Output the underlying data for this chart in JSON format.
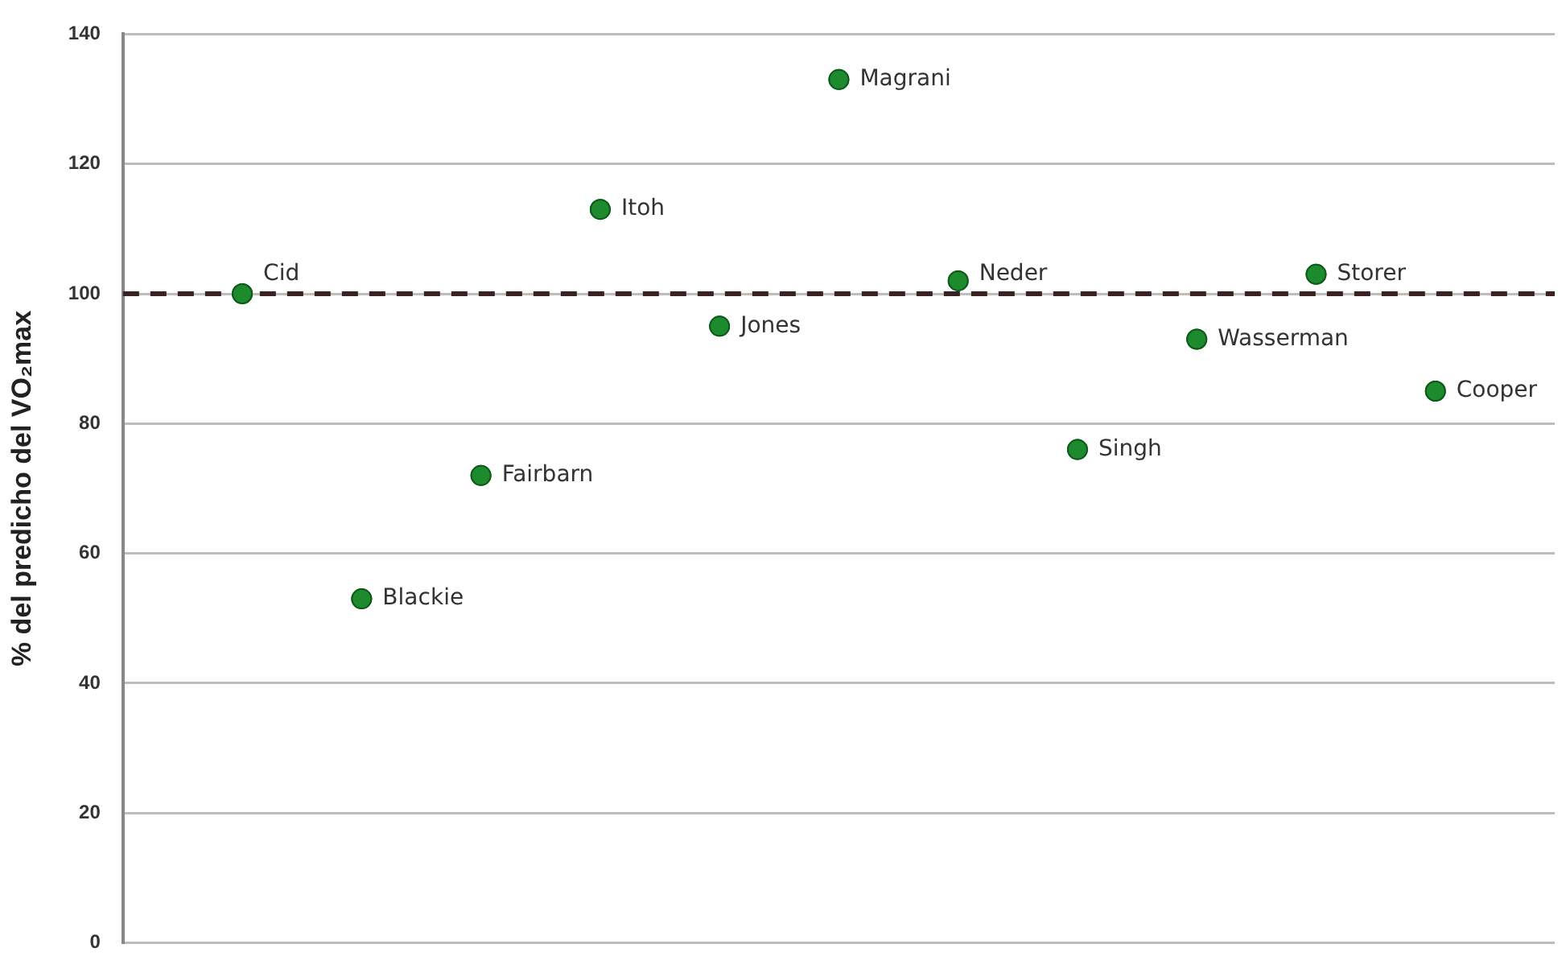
{
  "chart_data": {
    "type": "scatter",
    "ylabel": "% del predicho del VO₂max",
    "categories": [
      null,
      null,
      null,
      null,
      null,
      null,
      null,
      null,
      null,
      null,
      null
    ],
    "values": [
      100,
      53,
      72,
      113,
      95,
      133,
      102,
      76,
      93,
      103,
      85
    ],
    "value_labels": [
      "Cid",
      "Blackie",
      "Fairbarn",
      "Itoh",
      "Jones",
      "Magrani",
      "Neder",
      "Singh",
      "Wasserman",
      "Storer",
      "Cooper"
    ],
    "color": "#1e8a2e",
    "ylim": [
      0,
      140
    ],
    "yticks": [
      0,
      20,
      40,
      60,
      80,
      100,
      120,
      140
    ],
    "grid": "y",
    "marker": "circle",
    "legend": false,
    "ref_lines": [
      {
        "axis": "y",
        "value": 100,
        "label": null,
        "color": "#3a2222",
        "line_style": "dashed"
      }
    ]
  }
}
